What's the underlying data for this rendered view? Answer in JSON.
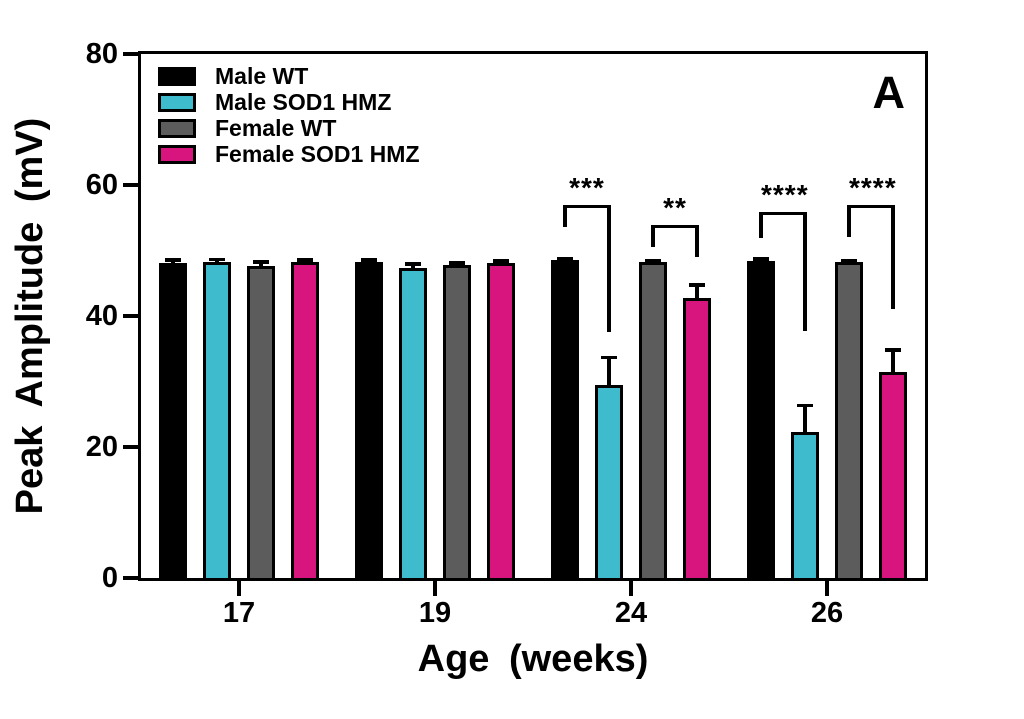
{
  "chart_data": {
    "type": "bar",
    "panel_label": "A",
    "xlabel": "Age (weeks)",
    "ylabel": "Peak Amplitude (mV)",
    "categories": [
      "17",
      "19",
      "24",
      "26"
    ],
    "ylim": [
      0,
      80
    ],
    "yticks": [
      0,
      20,
      40,
      60,
      80
    ],
    "grid": false,
    "legend_position": "top-left-inside",
    "axis_color": "#000000",
    "background_color": "#ffffff",
    "series": [
      {
        "name": "Male WT",
        "color": "#000000",
        "values": [
          48.1,
          48.3,
          48.5,
          48.4
        ],
        "errors": [
          0.7,
          0.5,
          0.4,
          0.4
        ]
      },
      {
        "name": "Male SOD1 HMZ",
        "color": "#3EBCCE",
        "values": [
          48.3,
          47.4,
          29.5,
          22.3
        ],
        "errors": [
          0.6,
          0.8,
          4.4,
          4.3
        ]
      },
      {
        "name": "Female WT",
        "color": "#5C5C5C",
        "values": [
          47.6,
          47.8,
          48.2,
          48.2
        ],
        "errors": [
          0.9,
          0.5,
          0.4,
          0.4
        ]
      },
      {
        "name": "Female SOD1 HMZ",
        "color": "#D8157E",
        "values": [
          48.2,
          48.1,
          42.8,
          31.5
        ],
        "errors": [
          0.6,
          0.6,
          2.2,
          3.6
        ]
      }
    ],
    "annotations": [
      {
        "label": "***",
        "group": 2,
        "bar1": 0,
        "bar2": 1,
        "y": 57.0,
        "drop1": 3.5,
        "drop2": 19.5
      },
      {
        "label": "**",
        "group": 2,
        "bar1": 2,
        "bar2": 3,
        "y": 53.9,
        "drop1": 3.4,
        "drop2": 5.0
      },
      {
        "label": "****",
        "group": 3,
        "bar1": 0,
        "bar2": 1,
        "y": 55.9,
        "drop1": 4.0,
        "drop2": 18.3
      },
      {
        "label": "****",
        "group": 3,
        "bar1": 2,
        "bar2": 3,
        "y": 57.0,
        "drop1": 5.0,
        "drop2": 16.0
      }
    ]
  }
}
